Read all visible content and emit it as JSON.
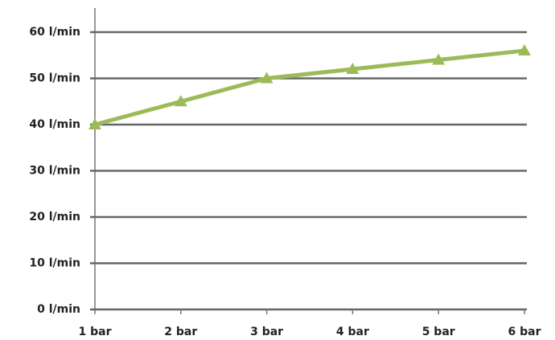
{
  "chart_data": {
    "type": "line",
    "categories": [
      "1 bar",
      "2 bar",
      "3 bar",
      "4 bar",
      "5 bar",
      "6 bar"
    ],
    "series": [
      {
        "color": "#9bbb59",
        "values": [
          40,
          45,
          50,
          52,
          54,
          56
        ]
      }
    ],
    "ylim": [
      0,
      60
    ],
    "yticks": [
      {
        "value": 0,
        "label": "0 l/min"
      },
      {
        "value": 10,
        "label": "10 l/min"
      },
      {
        "value": 20,
        "label": "20 l/min"
      },
      {
        "value": 30,
        "label": "30 l/min"
      },
      {
        "value": 40,
        "label": "40 l/min"
      },
      {
        "value": 50,
        "label": "50 l/min"
      },
      {
        "value": 60,
        "label": "60 l/min"
      }
    ],
    "grid": true,
    "marker": "triangle"
  }
}
